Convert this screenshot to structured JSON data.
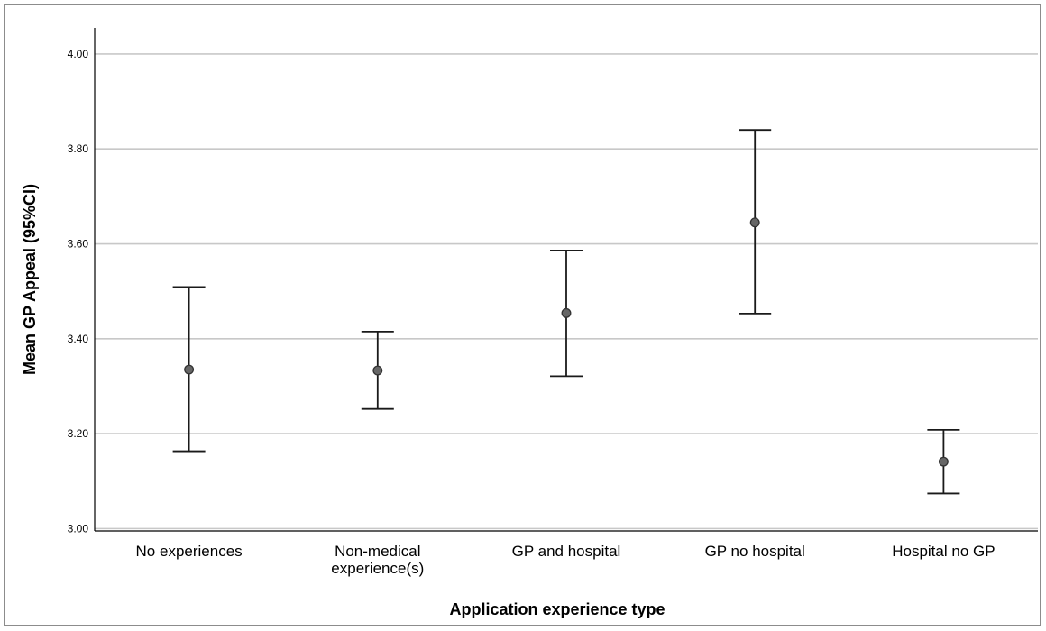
{
  "chart_data": {
    "type": "errorbar",
    "title": "",
    "xlabel": "Application experience type",
    "ylabel": "Mean GP Appeal (95%CI)",
    "ylim": [
      2.995,
      4.055
    ],
    "yticks": [
      "3.00",
      "3.20",
      "3.40",
      "3.60",
      "3.80",
      "4.00"
    ],
    "grid": true,
    "categories": [
      [
        "No experiences"
      ],
      [
        "Non-medical",
        "experience(s)"
      ],
      [
        "GP and hospital"
      ],
      [
        "GP no hospital"
      ],
      [
        "Hospital no GP"
      ]
    ],
    "series": [
      {
        "means": [
          3.335,
          3.333,
          3.454,
          3.645,
          3.141
        ],
        "lower": [
          3.163,
          3.252,
          3.321,
          3.453,
          3.074
        ],
        "upper": [
          3.509,
          3.415,
          3.586,
          3.84,
          3.208
        ]
      }
    ],
    "colors": {
      "grid": "#c8c8c8",
      "axis": "#000000",
      "marker_fill": "#666666",
      "marker_edge": "#333333",
      "whisker": "#1a1a1a"
    }
  }
}
